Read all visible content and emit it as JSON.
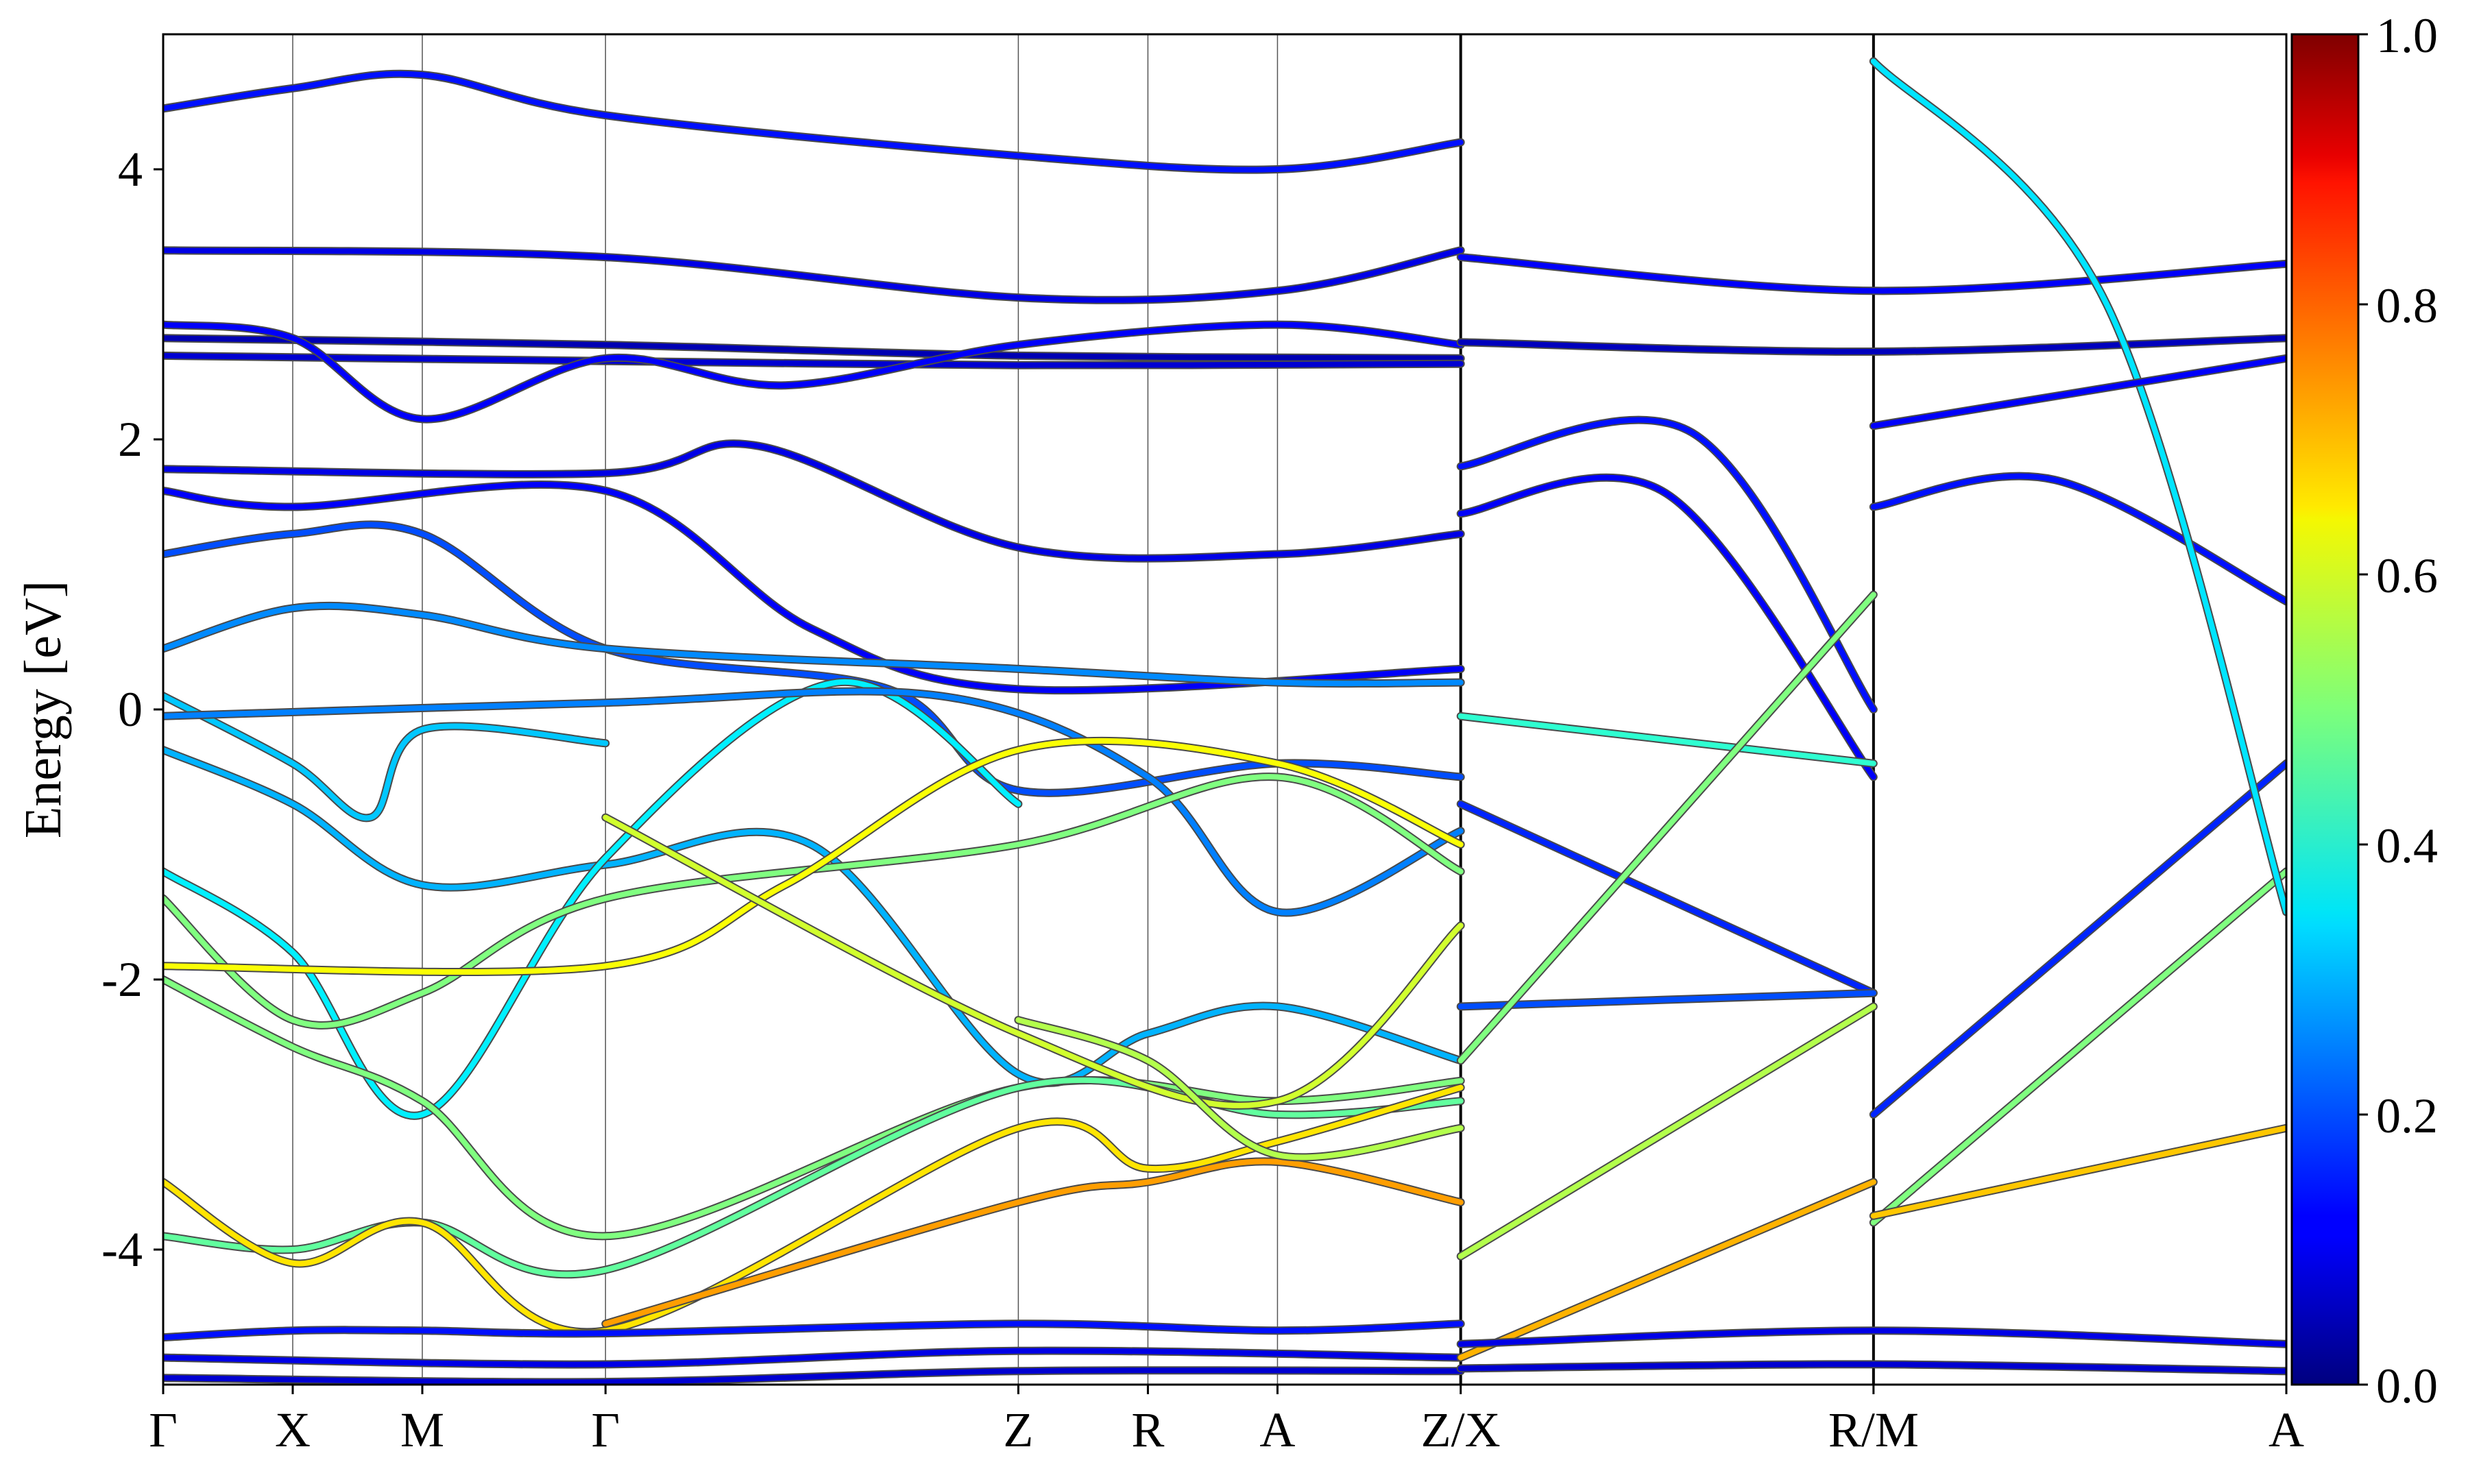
{
  "chart_data": {
    "type": "line",
    "title": "",
    "xlabel": "",
    "ylabel": "Energy [eV]",
    "ylim": [
      -5,
      5
    ],
    "y_ticks": [
      "4",
      "2",
      "0",
      "-2",
      "-4"
    ],
    "y_tick_values": [
      4,
      2,
      0,
      -2,
      -4
    ],
    "grid": "vertical lines at high-symmetry points",
    "legend": "none",
    "x_ticks": [
      {
        "label": "Γ",
        "k": 0.0
      },
      {
        "label": "X",
        "k": 0.5
      },
      {
        "label": "M",
        "k": 1.0
      },
      {
        "label": "Γ",
        "k": 1.707
      },
      {
        "label": "Z",
        "k": 3.3
      },
      {
        "label": "R",
        "k": 3.8
      },
      {
        "label": "A",
        "k": 4.3
      },
      {
        "label": "Z/X",
        "k": 5.007
      },
      {
        "label": "R/M",
        "k": 6.6
      },
      {
        "label": "A",
        "k": 8.193
      }
    ],
    "panel_breaks_k": [
      5.007,
      6.6
    ],
    "colorbar": {
      "min": 0.0,
      "max": 1.0,
      "ticks": [
        "0.0",
        "0.2",
        "0.4",
        "0.6",
        "0.8",
        "1.0"
      ],
      "tick_values": [
        0.0,
        0.2,
        0.4,
        0.6,
        0.8,
        1.0
      ],
      "colormap": "jet"
    },
    "series": [
      {
        "weight": 0.05,
        "x": [
          0,
          1.707,
          3.3,
          5.007
        ],
        "y": [
          2.75,
          2.7,
          2.62,
          2.6
        ]
      },
      {
        "weight": 0.08,
        "x": [
          0,
          1.707,
          3.3,
          5.007
        ],
        "y": [
          2.62,
          2.58,
          2.55,
          2.56
        ]
      },
      {
        "weight": 0.12,
        "x": [
          0,
          0.5,
          1.0,
          1.707,
          2.4,
          3.3,
          4.3,
          5.007
        ],
        "y": [
          2.85,
          2.75,
          2.15,
          2.6,
          2.4,
          2.7,
          2.85,
          2.7
        ]
      },
      {
        "weight": 0.1,
        "x": [
          0,
          1.707,
          3.3,
          4.3,
          5.007
        ],
        "y": [
          3.4,
          3.35,
          3.05,
          3.1,
          3.4
        ]
      },
      {
        "weight": 0.14,
        "x": [
          0,
          0.5,
          1.0,
          1.707,
          3.3,
          4.3,
          5.007
        ],
        "y": [
          4.45,
          4.6,
          4.7,
          4.4,
          4.1,
          4.0,
          4.2
        ]
      },
      {
        "weight": 0.1,
        "x": [
          0,
          1.707,
          2.3,
          3.3,
          4.3,
          5.007
        ],
        "y": [
          1.78,
          1.75,
          1.95,
          1.2,
          1.15,
          1.3
        ]
      },
      {
        "weight": 0.12,
        "x": [
          0,
          0.5,
          1.707,
          2.5,
          3.3,
          5.007
        ],
        "y": [
          1.62,
          1.5,
          1.62,
          0.6,
          0.15,
          0.3
        ]
      },
      {
        "weight": 0.2,
        "x": [
          0,
          0.5,
          1.0,
          1.707,
          2.8,
          3.3,
          4.3,
          5.007
        ],
        "y": [
          1.15,
          1.3,
          1.3,
          0.45,
          0.15,
          -0.6,
          -0.4,
          -0.5
        ]
      },
      {
        "weight": 0.26,
        "x": [
          0,
          0.5,
          1.0,
          1.707,
          3.3,
          4.3,
          5.007
        ],
        "y": [
          0.45,
          0.75,
          0.7,
          0.45,
          0.3,
          0.2,
          0.2
        ]
      },
      {
        "weight": 0.32,
        "x": [
          0,
          0.5,
          0.8,
          1.0,
          1.707
        ],
        "y": [
          0.1,
          -0.4,
          -0.8,
          -0.15,
          -0.25
        ]
      },
      {
        "weight": 0.3,
        "x": [
          0,
          0.5,
          1.0,
          1.707,
          2.5,
          3.3,
          3.8,
          4.3,
          5.007
        ],
        "y": [
          -0.3,
          -0.7,
          -1.3,
          -1.15,
          -1.0,
          -2.7,
          -2.4,
          -2.2,
          -2.6
        ]
      },
      {
        "weight": 0.36,
        "x": [
          0,
          0.5,
          1.0,
          1.707,
          2.6,
          3.3
        ],
        "y": [
          -1.2,
          -1.8,
          -3.0,
          -1.1,
          0.2,
          -0.7
        ]
      },
      {
        "weight": 0.25,
        "x": [
          0,
          1.707,
          3.0,
          3.8,
          4.3,
          5.007
        ],
        "y": [
          -0.05,
          0.05,
          0.1,
          -0.5,
          -1.5,
          -0.9
        ]
      },
      {
        "weight": 0.5,
        "x": [
          0,
          0.5,
          1.0,
          1.707,
          3.3,
          4.3,
          5.007
        ],
        "y": [
          -1.4,
          -2.3,
          -2.1,
          -1.4,
          -1.0,
          -0.5,
          -1.2
        ]
      },
      {
        "weight": 0.5,
        "x": [
          0,
          0.5,
          1.0,
          1.707,
          3.3,
          4.3,
          5.007
        ],
        "y": [
          -2.0,
          -2.5,
          -2.9,
          -3.9,
          -2.8,
          -2.9,
          -2.75
        ]
      },
      {
        "weight": 0.47,
        "x": [
          0,
          0.5,
          1.0,
          1.707,
          3.3,
          4.3,
          5.007
        ],
        "y": [
          -3.9,
          -4.0,
          -3.8,
          -4.15,
          -2.8,
          -3.0,
          -2.9
        ]
      },
      {
        "weight": 0.62,
        "x": [
          0,
          1.707,
          2.4,
          3.3,
          4.3,
          5.007
        ],
        "y": [
          -1.9,
          -1.9,
          -1.3,
          -0.3,
          -0.4,
          -1.0
        ]
      },
      {
        "weight": 0.65,
        "x": [
          0,
          0.5,
          1.0,
          1.707,
          3.3,
          3.8,
          4.3,
          5.007
        ],
        "y": [
          -3.5,
          -4.1,
          -3.8,
          -4.6,
          -3.1,
          -3.4,
          -3.2,
          -2.8
        ]
      },
      {
        "weight": 0.72,
        "x": [
          1.707,
          3.3,
          3.8,
          4.3,
          5.007
        ],
        "y": [
          -4.55,
          -3.65,
          -3.5,
          -3.35,
          -3.65
        ]
      },
      {
        "weight": 0.58,
        "x": [
          1.707,
          3.3,
          4.3,
          5.007
        ],
        "y": [
          -0.8,
          -2.4,
          -2.9,
          -1.6
        ]
      },
      {
        "weight": 0.55,
        "x": [
          3.3,
          3.8,
          4.3,
          5.007
        ],
        "y": [
          -2.3,
          -2.6,
          -3.3,
          -3.1
        ]
      },
      {
        "weight": 0.14,
        "x": [
          0,
          0.5,
          1.0,
          1.707,
          3.3,
          4.3,
          5.007
        ],
        "y": [
          -4.65,
          -4.6,
          -4.6,
          -4.62,
          -4.55,
          -4.6,
          -4.55
        ]
      },
      {
        "weight": 0.1,
        "x": [
          0,
          1.707,
          3.3,
          5.007
        ],
        "y": [
          -4.8,
          -4.85,
          -4.75,
          -4.8
        ]
      },
      {
        "weight": 0.08,
        "x": [
          0,
          1.707,
          3.3,
          5.007
        ],
        "y": [
          -4.95,
          -4.98,
          -4.9,
          -4.9
        ]
      },
      {
        "weight": 0.06,
        "x": [
          5.007,
          6.6,
          8.193
        ],
        "y": [
          2.72,
          2.65,
          2.75
        ]
      },
      {
        "weight": 0.12,
        "x": [
          5.007,
          6.6,
          8.193
        ],
        "y": [
          3.35,
          3.1,
          3.3
        ]
      },
      {
        "weight": 0.14,
        "x": [
          5.007,
          5.9,
          6.6
        ],
        "y": [
          1.8,
          2.05,
          0.0
        ]
      },
      {
        "weight": 0.12,
        "x": [
          5.007,
          5.8,
          6.6
        ],
        "y": [
          1.45,
          1.6,
          -0.5
        ]
      },
      {
        "weight": 0.16,
        "x": [
          5.007,
          6.6
        ],
        "y": [
          -0.7,
          -2.1
        ]
      },
      {
        "weight": 0.2,
        "x": [
          5.007,
          6.6
        ],
        "y": [
          -2.2,
          -2.1
        ]
      },
      {
        "weight": 0.42,
        "x": [
          5.007,
          6.6
        ],
        "y": [
          -0.05,
          -0.4
        ]
      },
      {
        "weight": 0.55,
        "x": [
          5.007,
          6.6
        ],
        "y": [
          -4.05,
          -2.2
        ]
      },
      {
        "weight": 0.5,
        "x": [
          5.007,
          6.6
        ],
        "y": [
          -2.6,
          0.85
        ]
      },
      {
        "weight": 0.7,
        "x": [
          5.007,
          6.6
        ],
        "y": [
          -4.8,
          -3.5
        ]
      },
      {
        "weight": 0.1,
        "x": [
          5.007,
          6.6,
          8.193
        ],
        "y": [
          -4.7,
          -4.6,
          -4.7
        ]
      },
      {
        "weight": 0.08,
        "x": [
          5.007,
          6.6,
          8.193
        ],
        "y": [
          -4.88,
          -4.85,
          -4.9
        ]
      },
      {
        "weight": 0.14,
        "x": [
          6.6,
          7.3,
          8.193
        ],
        "y": [
          1.5,
          1.7,
          0.8
        ]
      },
      {
        "weight": 0.16,
        "x": [
          6.6,
          8.193
        ],
        "y": [
          -3.0,
          -0.4
        ]
      },
      {
        "weight": 0.5,
        "x": [
          6.6,
          8.193
        ],
        "y": [
          -3.8,
          -1.2
        ]
      },
      {
        "weight": 0.68,
        "x": [
          6.6,
          8.193
        ],
        "y": [
          -3.75,
          -3.1
        ]
      },
      {
        "weight": 0.35,
        "x": [
          6.6,
          7.5,
          8.193
        ],
        "y": [
          4.8,
          3.0,
          -1.5
        ]
      },
      {
        "weight": 0.12,
        "x": [
          6.6,
          8.193
        ],
        "y": [
          2.1,
          2.6
        ]
      }
    ]
  }
}
